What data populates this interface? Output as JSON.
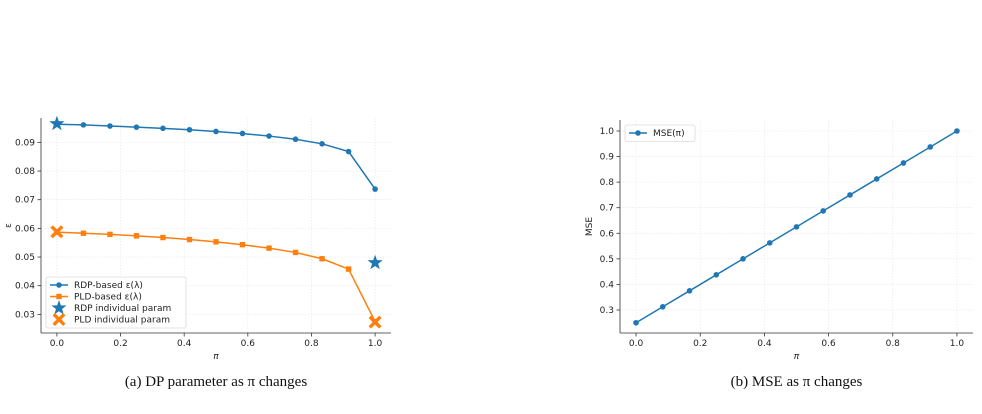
{
  "chart_data": [
    {
      "type": "line",
      "caption": "(a) DP parameter as π changes",
      "xlabel": "π",
      "ylabel": "ε",
      "xlim": [
        -0.05,
        1.05
      ],
      "xticks": [
        {
          "value": 0,
          "label": "0.0"
        },
        0.2,
        0.4,
        0.6,
        0.8,
        {
          "value": 1,
          "label": "1.0"
        }
      ],
      "ylim": [
        0.0235,
        0.0985
      ],
      "yticks": [
        0.03,
        0.04,
        0.05,
        0.06,
        0.07,
        0.08,
        0.09
      ],
      "grid": true,
      "legend": "lower left",
      "series": [
        {
          "name": "RDP-based ε(λ)",
          "color": "#1f77b4",
          "marker": "o",
          "line": true,
          "x": [
            0,
            0.0833,
            0.1667,
            0.25,
            0.3333,
            0.4167,
            0.5,
            0.5833,
            0.6667,
            0.75,
            0.8333,
            0.9167,
            1
          ],
          "values": [
            0.0963,
            0.0961,
            0.0957,
            0.0953,
            0.0949,
            0.0944,
            0.0938,
            0.0931,
            0.0922,
            0.0911,
            0.0895,
            0.0868,
            0.0737
          ]
        },
        {
          "name": "PLD-based ε(λ)",
          "color": "#ff7f0e",
          "marker": "s",
          "line": true,
          "x": [
            0,
            0.0833,
            0.1667,
            0.25,
            0.3333,
            0.4167,
            0.5,
            0.5833,
            0.6667,
            0.75,
            0.8333,
            0.9167,
            1
          ],
          "values": [
            0.0587,
            0.0583,
            0.0579,
            0.0574,
            0.0568,
            0.0561,
            0.0553,
            0.0543,
            0.0531,
            0.0516,
            0.0494,
            0.0458,
            0.0275
          ]
        },
        {
          "name": "RDP individual param",
          "color": "#1f77b4",
          "marker": "*",
          "line": false,
          "x": [
            0,
            1
          ],
          "values": [
            0.0965,
            0.048
          ]
        },
        {
          "name": "PLD individual param",
          "color": "#ff7f0e",
          "marker": "X",
          "line": false,
          "x": [
            0,
            1
          ],
          "values": [
            0.0588,
            0.0273
          ]
        }
      ]
    },
    {
      "type": "line",
      "caption": "(b) MSE as π changes",
      "xlabel": "π",
      "ylabel": "MSE",
      "xlim": [
        -0.05,
        1.05
      ],
      "xticks": [
        {
          "value": 0,
          "label": "0.0"
        },
        0.2,
        0.4,
        0.6,
        0.8,
        {
          "value": 1,
          "label": "1.0"
        }
      ],
      "ylim": [
        0.21,
        1.043
      ],
      "yticks": [
        0.3,
        0.4,
        0.5,
        0.6,
        0.7,
        0.8,
        0.9,
        {
          "value": 1,
          "label": "1.0"
        }
      ],
      "grid": true,
      "legend": "upper left",
      "series": [
        {
          "name": "MSE(π)",
          "color": "#1f77b4",
          "marker": "o",
          "line": true,
          "x": [
            0,
            0.0833,
            0.1667,
            0.25,
            0.3333,
            0.4167,
            0.5,
            0.5833,
            0.6667,
            0.75,
            0.8333,
            0.9167,
            1
          ],
          "values": [
            0.25,
            0.3125,
            0.375,
            0.4375,
            0.5,
            0.5625,
            0.625,
            0.6875,
            0.75,
            0.8125,
            0.875,
            0.9375,
            1
          ]
        }
      ]
    }
  ]
}
